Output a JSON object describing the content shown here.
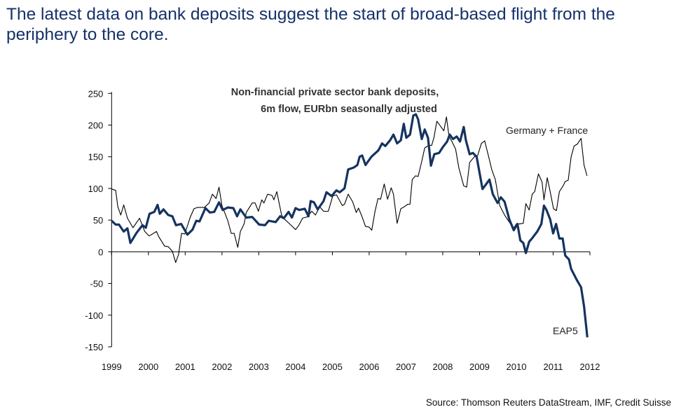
{
  "headline": "The latest data on bank deposits suggest the start of broad-based flight from the periphery to the core.",
  "source": "Source: Thomson Reuters DataStream, IMF, Credit Suisse",
  "colors": {
    "headline": "#15316b",
    "eap5": "#15335f",
    "germany_france": "#000000"
  },
  "chart_data": {
    "type": "line",
    "title_lines": [
      "Non-financial private sector bank deposits,",
      "6m flow, EURbn seasonally adjusted"
    ],
    "xlabel": "",
    "ylabel": "",
    "xlim": [
      1999,
      2012
    ],
    "ylim": [
      -150,
      250
    ],
    "xticks": [
      "1999",
      "2000",
      "2001",
      "2002",
      "2003",
      "2004",
      "2005",
      "2006",
      "2007",
      "2008",
      "2009",
      "2010",
      "2011",
      "2012"
    ],
    "yticks": [
      "250",
      "200",
      "150",
      "100",
      "50",
      "0",
      "-50",
      "-100",
      "-150"
    ],
    "grid": false,
    "series": [
      {
        "name": "Germany + France",
        "points": [
          [
            1999.0,
            99
          ],
          [
            1999.11,
            97
          ],
          [
            1999.17,
            71
          ],
          [
            1999.25,
            58
          ],
          [
            1999.33,
            74
          ],
          [
            1999.43,
            53
          ],
          [
            1999.58,
            38
          ],
          [
            1999.76,
            53
          ],
          [
            1999.9,
            32
          ],
          [
            2000.02,
            25
          ],
          [
            2000.22,
            32
          ],
          [
            2000.28,
            24
          ],
          [
            2000.44,
            9
          ],
          [
            2000.54,
            8
          ],
          [
            2000.65,
            1
          ],
          [
            2000.74,
            -17
          ],
          [
            2000.82,
            -4
          ],
          [
            2000.9,
            29
          ],
          [
            2000.99,
            28
          ],
          [
            2001.14,
            55
          ],
          [
            2001.24,
            68
          ],
          [
            2001.33,
            70
          ],
          [
            2001.52,
            70
          ],
          [
            2001.65,
            77
          ],
          [
            2001.74,
            91
          ],
          [
            2001.84,
            84
          ],
          [
            2001.92,
            102
          ],
          [
            2002.0,
            73
          ],
          [
            2002.16,
            49
          ],
          [
            2002.25,
            29
          ],
          [
            2002.33,
            29
          ],
          [
            2002.43,
            7
          ],
          [
            2002.5,
            32
          ],
          [
            2002.6,
            44
          ],
          [
            2002.66,
            62
          ],
          [
            2002.82,
            77
          ],
          [
            2002.9,
            77
          ],
          [
            2002.99,
            64
          ],
          [
            2003.08,
            82
          ],
          [
            2003.14,
            77
          ],
          [
            2003.24,
            91
          ],
          [
            2003.36,
            89
          ],
          [
            2003.41,
            82
          ],
          [
            2003.49,
            95
          ],
          [
            2003.62,
            58
          ],
          [
            2003.71,
            51
          ],
          [
            2003.84,
            44
          ],
          [
            2004.0,
            35
          ],
          [
            2004.09,
            42
          ],
          [
            2004.19,
            53
          ],
          [
            2004.31,
            55
          ],
          [
            2004.44,
            64
          ],
          [
            2004.54,
            58
          ],
          [
            2004.66,
            71
          ],
          [
            2004.76,
            64
          ],
          [
            2004.89,
            64
          ],
          [
            2005.01,
            88
          ],
          [
            2005.11,
            90
          ],
          [
            2005.27,
            73
          ],
          [
            2005.33,
            75
          ],
          [
            2005.43,
            91
          ],
          [
            2005.55,
            79
          ],
          [
            2005.65,
            62
          ],
          [
            2005.71,
            69
          ],
          [
            2005.81,
            55
          ],
          [
            2005.9,
            40
          ],
          [
            2006.0,
            39
          ],
          [
            2006.07,
            34
          ],
          [
            2006.16,
            64
          ],
          [
            2006.24,
            84
          ],
          [
            2006.31,
            83
          ],
          [
            2006.41,
            107
          ],
          [
            2006.5,
            83
          ],
          [
            2006.6,
            101
          ],
          [
            2006.66,
            91
          ],
          [
            2006.76,
            45
          ],
          [
            2006.86,
            68
          ],
          [
            2006.95,
            71
          ],
          [
            2007.05,
            75
          ],
          [
            2007.11,
            75
          ],
          [
            2007.17,
            114
          ],
          [
            2007.26,
            120
          ],
          [
            2007.33,
            119
          ],
          [
            2007.43,
            143
          ],
          [
            2007.51,
            164
          ],
          [
            2007.62,
            168
          ],
          [
            2007.7,
            168
          ],
          [
            2007.76,
            180
          ],
          [
            2007.84,
            206
          ],
          [
            2007.93,
            199
          ],
          [
            2008.03,
            191
          ],
          [
            2008.1,
            213
          ],
          [
            2008.17,
            182
          ],
          [
            2008.25,
            174
          ],
          [
            2008.35,
            162
          ],
          [
            2008.44,
            132
          ],
          [
            2008.57,
            104
          ],
          [
            2008.65,
            102
          ],
          [
            2008.73,
            141
          ],
          [
            2008.86,
            150
          ],
          [
            2008.95,
            152
          ],
          [
            2009.05,
            171
          ],
          [
            2009.14,
            175
          ],
          [
            2009.27,
            145
          ],
          [
            2009.33,
            130
          ],
          [
            2009.43,
            114
          ],
          [
            2009.55,
            73
          ],
          [
            2009.68,
            58
          ],
          [
            2009.84,
            44
          ],
          [
            2009.92,
            37
          ],
          [
            2010.0,
            44
          ],
          [
            2010.09,
            44
          ],
          [
            2010.19,
            45
          ],
          [
            2010.26,
            76
          ],
          [
            2010.35,
            66
          ],
          [
            2010.43,
            91
          ],
          [
            2010.5,
            95
          ],
          [
            2010.6,
            123
          ],
          [
            2010.7,
            110
          ],
          [
            2010.75,
            82
          ],
          [
            2010.84,
            117
          ],
          [
            2010.92,
            95
          ],
          [
            2011.01,
            68
          ],
          [
            2011.09,
            65
          ],
          [
            2011.17,
            95
          ],
          [
            2011.27,
            104
          ],
          [
            2011.33,
            111
          ],
          [
            2011.41,
            113
          ],
          [
            2011.49,
            150
          ],
          [
            2011.57,
            167
          ],
          [
            2011.66,
            170
          ],
          [
            2011.76,
            179
          ],
          [
            2011.84,
            137
          ],
          [
            2011.92,
            120
          ]
        ]
      },
      {
        "name": "EAP5",
        "points": [
          [
            1999.0,
            49
          ],
          [
            1999.11,
            43
          ],
          [
            1999.2,
            43
          ],
          [
            1999.33,
            32
          ],
          [
            1999.43,
            37
          ],
          [
            1999.51,
            14
          ],
          [
            1999.68,
            30
          ],
          [
            1999.84,
            42
          ],
          [
            1999.93,
            38
          ],
          [
            2000.03,
            60
          ],
          [
            2000.16,
            63
          ],
          [
            2000.25,
            74
          ],
          [
            2000.31,
            60
          ],
          [
            2000.41,
            67
          ],
          [
            2000.54,
            58
          ],
          [
            2000.65,
            56
          ],
          [
            2000.75,
            42
          ],
          [
            2000.89,
            44
          ],
          [
            2001.06,
            27
          ],
          [
            2001.2,
            35
          ],
          [
            2001.3,
            49
          ],
          [
            2001.39,
            48
          ],
          [
            2001.55,
            69
          ],
          [
            2001.67,
            62
          ],
          [
            2001.79,
            63
          ],
          [
            2001.92,
            78
          ],
          [
            2002.02,
            66
          ],
          [
            2002.16,
            70
          ],
          [
            2002.31,
            69
          ],
          [
            2002.41,
            56
          ],
          [
            2002.5,
            67
          ],
          [
            2002.66,
            54
          ],
          [
            2002.82,
            55
          ],
          [
            2003.01,
            43
          ],
          [
            2003.17,
            42
          ],
          [
            2003.27,
            49
          ],
          [
            2003.46,
            47
          ],
          [
            2003.58,
            56
          ],
          [
            2003.68,
            53
          ],
          [
            2003.81,
            63
          ],
          [
            2003.9,
            54
          ],
          [
            2004.0,
            69
          ],
          [
            2004.1,
            66
          ],
          [
            2004.25,
            68
          ],
          [
            2004.35,
            56
          ],
          [
            2004.41,
            80
          ],
          [
            2004.5,
            78
          ],
          [
            2004.6,
            67
          ],
          [
            2004.76,
            80
          ],
          [
            2004.84,
            94
          ],
          [
            2004.98,
            88
          ],
          [
            2005.11,
            97
          ],
          [
            2005.2,
            94
          ],
          [
            2005.33,
            100
          ],
          [
            2005.43,
            130
          ],
          [
            2005.58,
            133
          ],
          [
            2005.68,
            137
          ],
          [
            2005.74,
            150
          ],
          [
            2005.81,
            152
          ],
          [
            2005.9,
            137
          ],
          [
            2006.06,
            150
          ],
          [
            2006.25,
            160
          ],
          [
            2006.35,
            171
          ],
          [
            2006.44,
            167
          ],
          [
            2006.57,
            176
          ],
          [
            2006.66,
            185
          ],
          [
            2006.76,
            171
          ],
          [
            2006.86,
            176
          ],
          [
            2006.94,
            202
          ],
          [
            2007.01,
            180
          ],
          [
            2007.11,
            185
          ],
          [
            2007.2,
            215
          ],
          [
            2007.27,
            217
          ],
          [
            2007.33,
            209
          ],
          [
            2007.43,
            178
          ],
          [
            2007.51,
            193
          ],
          [
            2007.6,
            180
          ],
          [
            2007.68,
            136
          ],
          [
            2007.77,
            154
          ],
          [
            2007.9,
            156
          ],
          [
            2008.0,
            165
          ],
          [
            2008.12,
            174
          ],
          [
            2008.19,
            185
          ],
          [
            2008.28,
            178
          ],
          [
            2008.38,
            182
          ],
          [
            2008.47,
            174
          ],
          [
            2008.57,
            197
          ],
          [
            2008.63,
            176
          ],
          [
            2008.73,
            154
          ],
          [
            2008.82,
            156
          ],
          [
            2008.92,
            150
          ],
          [
            2009.08,
            99
          ],
          [
            2009.17,
            106
          ],
          [
            2009.27,
            114
          ],
          [
            2009.36,
            91
          ],
          [
            2009.49,
            77
          ],
          [
            2009.58,
            86
          ],
          [
            2009.68,
            79
          ],
          [
            2009.81,
            51
          ],
          [
            2009.93,
            34
          ],
          [
            2010.03,
            44
          ],
          [
            2010.11,
            18
          ],
          [
            2010.19,
            14
          ],
          [
            2010.26,
            -2
          ],
          [
            2010.35,
            16
          ],
          [
            2010.41,
            20
          ],
          [
            2010.57,
            32
          ],
          [
            2010.68,
            44
          ],
          [
            2010.75,
            73
          ],
          [
            2010.82,
            66
          ],
          [
            2010.92,
            51
          ],
          [
            2011.0,
            29
          ],
          [
            2011.08,
            44
          ],
          [
            2011.17,
            21
          ],
          [
            2011.26,
            21
          ],
          [
            2011.33,
            -6
          ],
          [
            2011.43,
            -12
          ],
          [
            2011.49,
            -27
          ],
          [
            2011.65,
            -45
          ],
          [
            2011.76,
            -56
          ],
          [
            2011.84,
            -86
          ],
          [
            2011.93,
            -135
          ]
        ]
      }
    ],
    "legend": "inline-labels"
  }
}
